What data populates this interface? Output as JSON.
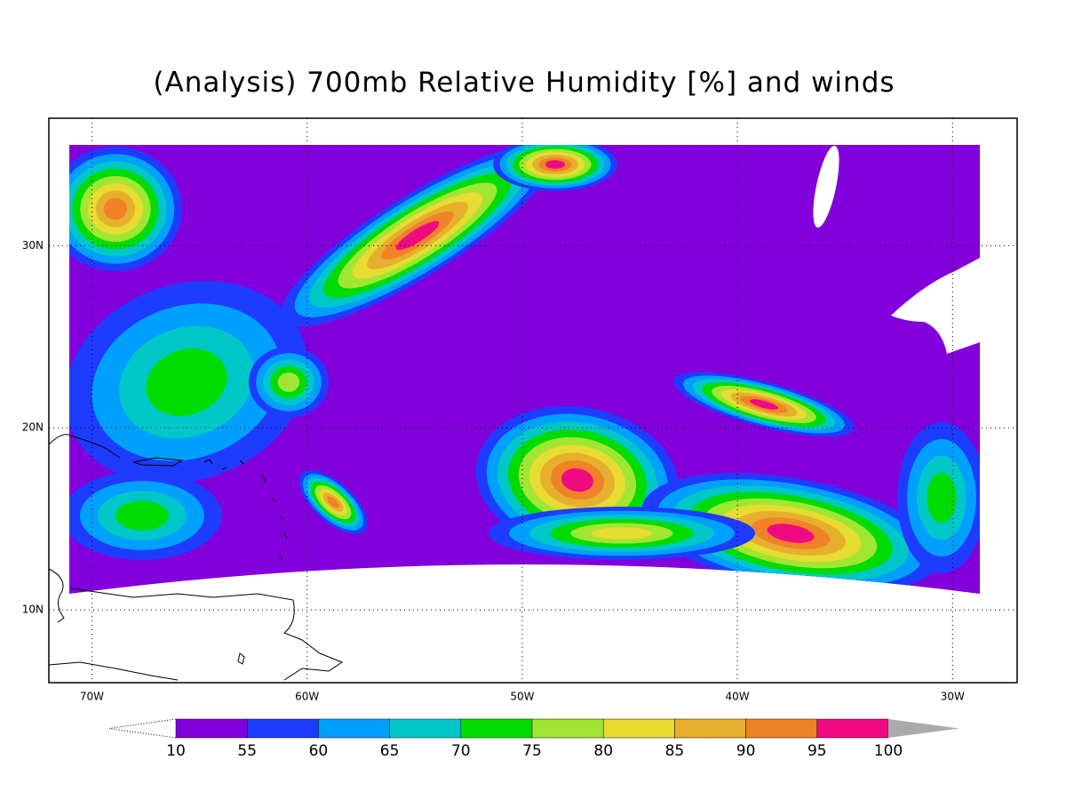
{
  "map": {
    "title": "(Analysis) 700mb Relative Humidity [%] and winds",
    "xlim": [
      -72,
      -27
    ],
    "ylim": [
      6,
      37
    ],
    "xticks": [
      {
        "value": -70,
        "label": "70W"
      },
      {
        "value": -60,
        "label": "60W"
      },
      {
        "value": -50,
        "label": "50W"
      },
      {
        "value": -40,
        "label": "40W"
      },
      {
        "value": -30,
        "label": "30W"
      }
    ],
    "yticks": [
      {
        "value": 10,
        "label": "10N"
      },
      {
        "value": 20,
        "label": "20N"
      },
      {
        "value": 30,
        "label": "30N"
      }
    ],
    "grid": true,
    "colorbar": {
      "levels": [
        10,
        55,
        60,
        65,
        70,
        75,
        80,
        85,
        90,
        95,
        100
      ],
      "colors": [
        "#8200dc",
        "#1e3cff",
        "#00a0ff",
        "#00c8c8",
        "#00dc00",
        "#a0e632",
        "#e6dc32",
        "#e6af2d",
        "#f08228",
        "#f00a82"
      ],
      "over_color": "#aaaaaa"
    }
  }
}
